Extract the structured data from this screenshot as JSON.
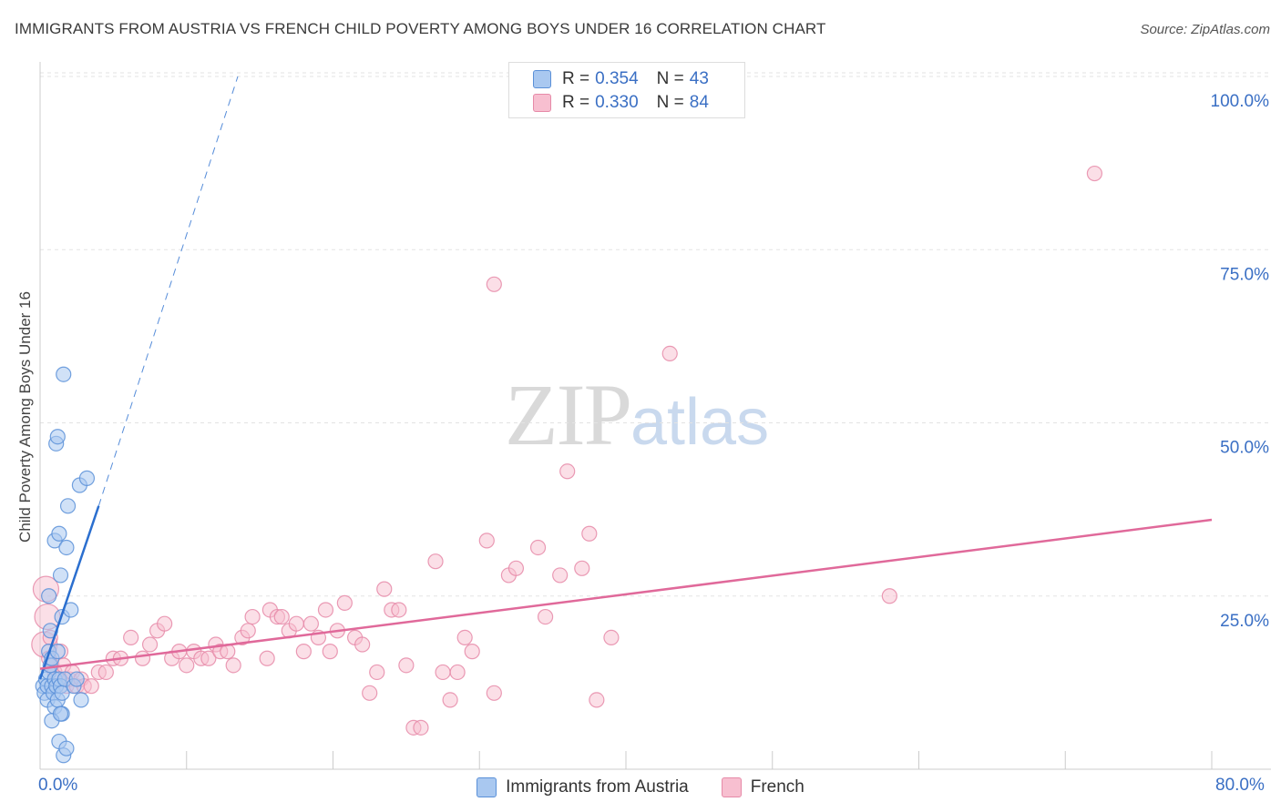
{
  "chart_data": {
    "type": "scatter",
    "title": "IMMIGRANTS FROM AUSTRIA VS FRENCH CHILD POVERTY AMONG BOYS UNDER 16 CORRELATION CHART",
    "source": "Source: ZipAtlas.com",
    "xlabel": "",
    "ylabel": "Child Poverty Among Boys Under 16",
    "xlim": [
      0,
      80
    ],
    "ylim": [
      0,
      100
    ],
    "x_tick_labels": [
      "0.0%",
      "80.0%"
    ],
    "y_ticks": [
      25,
      50,
      75,
      100
    ],
    "y_tick_labels": [
      "25.0%",
      "50.0%",
      "75.0%",
      "100.0%"
    ],
    "grid": true,
    "watermark": {
      "zip": "ZIP",
      "atlas": "atlas"
    },
    "legend_top": [
      {
        "r_label": "R =",
        "r": "0.354",
        "n_label": "N =",
        "n": "43"
      },
      {
        "r_label": "R =",
        "r": "0.330",
        "n_label": "N =",
        "n": "84"
      }
    ],
    "colors": {
      "austria_fill": "#a9c8f0",
      "austria_stroke": "#5a90d8",
      "austria_line": "#2b6fcf",
      "french_fill": "#f7bfd0",
      "french_stroke": "#e68aa8",
      "french_line": "#e0699a",
      "tick_label": "#3a6fc4",
      "grid": "#e3e3e3"
    },
    "series": [
      {
        "name": "Immigrants from Austria",
        "points": [
          [
            0.2,
            12
          ],
          [
            0.3,
            11
          ],
          [
            0.4,
            13
          ],
          [
            0.5,
            10
          ],
          [
            0.5,
            12
          ],
          [
            0.6,
            14
          ],
          [
            0.6,
            17
          ],
          [
            0.7,
            15
          ],
          [
            0.8,
            12
          ],
          [
            0.8,
            16
          ],
          [
            0.9,
            11
          ],
          [
            1.0,
            13
          ],
          [
            1.0,
            9
          ],
          [
            1.1,
            12
          ],
          [
            1.2,
            10
          ],
          [
            1.2,
            17
          ],
          [
            1.3,
            13
          ],
          [
            1.4,
            12
          ],
          [
            1.5,
            8
          ],
          [
            1.5,
            11
          ],
          [
            0.6,
            25
          ],
          [
            0.7,
            20
          ],
          [
            0.8,
            7
          ],
          [
            1.0,
            33
          ],
          [
            1.1,
            47
          ],
          [
            1.2,
            48
          ],
          [
            1.3,
            34
          ],
          [
            1.4,
            28
          ],
          [
            1.5,
            22
          ],
          [
            1.6,
            57
          ],
          [
            1.7,
            13
          ],
          [
            1.8,
            32
          ],
          [
            1.9,
            38
          ],
          [
            2.1,
            23
          ],
          [
            2.3,
            12
          ],
          [
            2.5,
            13
          ],
          [
            2.7,
            41
          ],
          [
            2.8,
            10
          ],
          [
            3.2,
            42
          ],
          [
            1.3,
            4
          ],
          [
            1.6,
            2
          ],
          [
            1.8,
            3
          ],
          [
            1.4,
            8
          ]
        ],
        "trend": {
          "x0": 0,
          "y0": 13,
          "x1": 4,
          "y1": 38
        },
        "trend_ext": {
          "x0": 4,
          "y0": 38,
          "x1": 13.5,
          "y1": 100
        }
      },
      {
        "name": "French",
        "points": [
          [
            0.3,
            18
          ],
          [
            0.4,
            26
          ],
          [
            0.5,
            22
          ],
          [
            0.6,
            16
          ],
          [
            0.7,
            19
          ],
          [
            0.8,
            15
          ],
          [
            1.0,
            14
          ],
          [
            1.2,
            13
          ],
          [
            1.4,
            17
          ],
          [
            1.6,
            15
          ],
          [
            1.8,
            12
          ],
          [
            2.0,
            13
          ],
          [
            2.2,
            14
          ],
          [
            2.5,
            12
          ],
          [
            2.8,
            13
          ],
          [
            3.0,
            12
          ],
          [
            3.5,
            12
          ],
          [
            4.0,
            14
          ],
          [
            4.5,
            14
          ],
          [
            5.0,
            16
          ],
          [
            5.5,
            16
          ],
          [
            6.2,
            19
          ],
          [
            7.0,
            16
          ],
          [
            7.5,
            18
          ],
          [
            8.0,
            20
          ],
          [
            8.5,
            21
          ],
          [
            9.0,
            16
          ],
          [
            9.5,
            17
          ],
          [
            10.0,
            15
          ],
          [
            10.5,
            17
          ],
          [
            11.0,
            16
          ],
          [
            11.5,
            16
          ],
          [
            12.0,
            18
          ],
          [
            12.3,
            17
          ],
          [
            12.8,
            17
          ],
          [
            13.2,
            15
          ],
          [
            13.8,
            19
          ],
          [
            14.2,
            20
          ],
          [
            14.5,
            22
          ],
          [
            15.5,
            16
          ],
          [
            15.7,
            23
          ],
          [
            16.2,
            22
          ],
          [
            16.5,
            22
          ],
          [
            17.0,
            20
          ],
          [
            17.5,
            21
          ],
          [
            18.0,
            17
          ],
          [
            18.5,
            21
          ],
          [
            19.0,
            19
          ],
          [
            19.5,
            23
          ],
          [
            19.8,
            17
          ],
          [
            20.3,
            20
          ],
          [
            20.8,
            24
          ],
          [
            21.5,
            19
          ],
          [
            22.0,
            18
          ],
          [
            22.5,
            11
          ],
          [
            23.0,
            14
          ],
          [
            23.5,
            26
          ],
          [
            24.0,
            23
          ],
          [
            24.5,
            23
          ],
          [
            25.0,
            15
          ],
          [
            25.5,
            6
          ],
          [
            26.0,
            6
          ],
          [
            27.0,
            30
          ],
          [
            27.5,
            14
          ],
          [
            28.0,
            10
          ],
          [
            28.5,
            14
          ],
          [
            29.0,
            19
          ],
          [
            29.5,
            17
          ],
          [
            30.5,
            33
          ],
          [
            31.0,
            11
          ],
          [
            32.0,
            28
          ],
          [
            32.5,
            29
          ],
          [
            34.0,
            32
          ],
          [
            34.5,
            22
          ],
          [
            35.5,
            28
          ],
          [
            36.0,
            43
          ],
          [
            37.0,
            29
          ],
          [
            37.5,
            34
          ],
          [
            38.0,
            10
          ],
          [
            39.0,
            19
          ],
          [
            31.0,
            70
          ],
          [
            43,
            60
          ],
          [
            58,
            25
          ],
          [
            72,
            86
          ]
        ],
        "trend": {
          "x0": 0,
          "y0": 14.5,
          "x1": 80,
          "y1": 36
        }
      }
    ]
  }
}
